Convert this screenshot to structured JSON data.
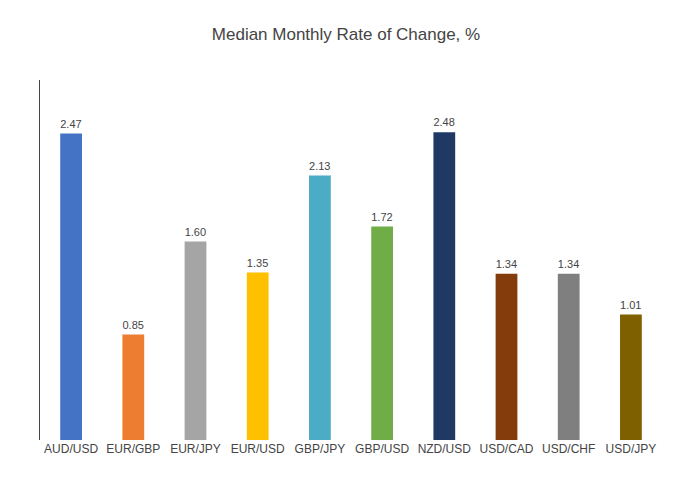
{
  "chart_data": {
    "type": "bar",
    "title": "Median Monthly Rate of Change, %",
    "categories": [
      "AUD/USD",
      "EUR/GBP",
      "EUR/JPY",
      "EUR/USD",
      "GBP/JPY",
      "GBP/USD",
      "NZD/USD",
      "USD/CAD",
      "USD/CHF",
      "USD/JPY"
    ],
    "values": [
      2.47,
      0.85,
      1.6,
      1.35,
      2.13,
      1.72,
      2.48,
      1.34,
      1.34,
      1.01
    ],
    "value_labels": [
      "2.47",
      "0.85",
      "1.60",
      "1.35",
      "2.13",
      "1.72",
      "2.48",
      "1.34",
      "1.34",
      "1.01"
    ],
    "colors": [
      "#4472C4",
      "#ED7D31",
      "#A5A5A5",
      "#FFC000",
      "#4BACC6",
      "#70AD47",
      "#1F3864",
      "#843C0C",
      "#7F7F7F",
      "#7F6000"
    ],
    "ylim": [
      0,
      2.9
    ],
    "data_labels": true,
    "grid": false,
    "tick_labels": "x"
  }
}
